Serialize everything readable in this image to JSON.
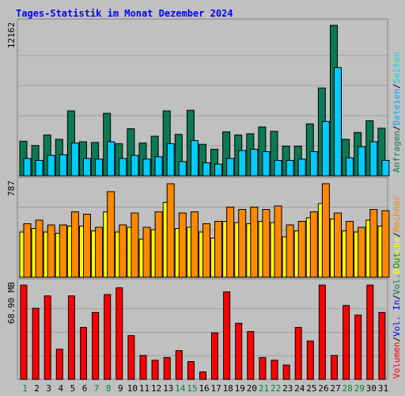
{
  "title": "Tages-Statistik im Monat Dezember 2024",
  "colors": {
    "background": "#c0c0c0",
    "title": "#0000ff",
    "anfragen": "#0a7a52",
    "dateien": "#00ccff",
    "seiten": "#00e0e0",
    "besuche": "#ffff00",
    "rechner": "#ff8800",
    "volumen": "#ff0000",
    "weekend_label": "#008040",
    "weekday_label": "#000000"
  },
  "chart_data": [
    {
      "type": "bar",
      "name": "hits-panel",
      "x": [
        1,
        2,
        3,
        4,
        5,
        6,
        7,
        8,
        9,
        10,
        11,
        12,
        13,
        14,
        15,
        16,
        17,
        18,
        19,
        20,
        21,
        22,
        23,
        24,
        25,
        26,
        27,
        28,
        29,
        30,
        31
      ],
      "ylim": [
        0,
        12162
      ],
      "ymax_label": "12162",
      "series": [
        {
          "name": "Anfragen",
          "values": [
            2800,
            2450,
            3300,
            2950,
            5250,
            2750,
            2700,
            5050,
            2600,
            3800,
            2650,
            3200,
            5250,
            3350,
            5300,
            2550,
            2150,
            3550,
            3300,
            3400,
            3950,
            3600,
            2400,
            2400,
            4200,
            7100,
            12162,
            2950,
            3500,
            4450,
            3850
          ]
        },
        {
          "name": "Dateien",
          "values": [
            1400,
            1250,
            1650,
            1700,
            2650,
            1400,
            1350,
            2750,
            1400,
            1650,
            1350,
            1550,
            2600,
            1150,
            2850,
            1050,
            950,
            1400,
            2050,
            2150,
            1950,
            1250,
            1250,
            1350,
            1950,
            4400,
            8750,
            1450,
            2350,
            2750,
            1250
          ]
        },
        {
          "name": "Seiten",
          "values": [
            150,
            120,
            180,
            160,
            250,
            140,
            130,
            260,
            140,
            160,
            130,
            150,
            240,
            120,
            270,
            110,
            100,
            140,
            200,
            210,
            190,
            120,
            120,
            130,
            190,
            400,
            800,
            140,
            220,
            260,
            120
          ]
        }
      ]
    },
    {
      "type": "bar",
      "name": "visits-panel",
      "x": [
        1,
        2,
        3,
        4,
        5,
        6,
        7,
        8,
        9,
        10,
        11,
        12,
        13,
        14,
        15,
        16,
        17,
        18,
        19,
        20,
        21,
        22,
        23,
        24,
        25,
        26,
        27,
        28,
        29,
        30,
        31
      ],
      "ylim": [
        0,
        787
      ],
      "ymax_label": "787",
      "series": [
        {
          "name": "Besuche",
          "values": [
            380,
            410,
            380,
            370,
            430,
            430,
            390,
            550,
            380,
            420,
            320,
            400,
            630,
            410,
            420,
            380,
            330,
            470,
            460,
            450,
            470,
            460,
            340,
            390,
            500,
            620,
            490,
            390,
            380,
            480,
            430
          ]
        },
        {
          "name": "Rechner",
          "values": [
            450,
            480,
            440,
            440,
            550,
            530,
            420,
            720,
            440,
            540,
            420,
            550,
            787,
            540,
            550,
            450,
            470,
            590,
            570,
            590,
            570,
            600,
            440,
            470,
            550,
            787,
            540,
            470,
            420,
            570,
            560
          ]
        }
      ]
    },
    {
      "type": "bar",
      "name": "volume-panel",
      "x": [
        1,
        2,
        3,
        4,
        5,
        6,
        7,
        8,
        9,
        10,
        11,
        12,
        13,
        14,
        15,
        16,
        17,
        18,
        19,
        20,
        21,
        22,
        23,
        24,
        25,
        26,
        27,
        28,
        29,
        30,
        31
      ],
      "ylim": [
        0,
        68.9
      ],
      "ymax_label": "68.90 MB",
      "series": [
        {
          "name": "Volumen",
          "values": [
            68.9,
            52.0,
            61.0,
            22.0,
            61.0,
            38.0,
            49.0,
            62.0,
            67.0,
            32.0,
            17.5,
            14.0,
            16.0,
            21.0,
            13.0,
            5.5,
            34.0,
            64.0,
            41.0,
            35.0,
            16.0,
            14.0,
            10.5,
            38.0,
            28.0,
            68.9,
            17.5,
            54.0,
            47.0,
            68.9,
            49.0
          ]
        }
      ]
    }
  ],
  "x_labels": [
    "1",
    "2",
    "3",
    "4",
    "5",
    "6",
    "7",
    "8",
    "9",
    "10",
    "11",
    "12",
    "13",
    "14",
    "15",
    "16",
    "17",
    "18",
    "19",
    "20",
    "21",
    "22",
    "23",
    "24",
    "25",
    "26",
    "27",
    "28",
    "29",
    "30",
    "31"
  ],
  "weekend_days": [
    1,
    7,
    8,
    14,
    15,
    21,
    22,
    28,
    29
  ],
  "right_legend": {
    "top": [
      {
        "text": "Anfragen",
        "color": "#0a7a52"
      },
      {
        "text": "Dateien",
        "color": "#00aaff"
      },
      {
        "text": "Seiten",
        "color": "#00e0e0"
      }
    ],
    "middle": [
      {
        "text": "Besuche",
        "color": "#ffff00"
      },
      {
        "text": "Rechner",
        "color": "#ff8800"
      }
    ],
    "bottom": [
      {
        "text": "Volumen",
        "color": "#ff0000"
      },
      {
        "text": "Vol. In",
        "color": "#0000ff"
      },
      {
        "text": "Vol. Out",
        "color": "#008040"
      }
    ]
  }
}
